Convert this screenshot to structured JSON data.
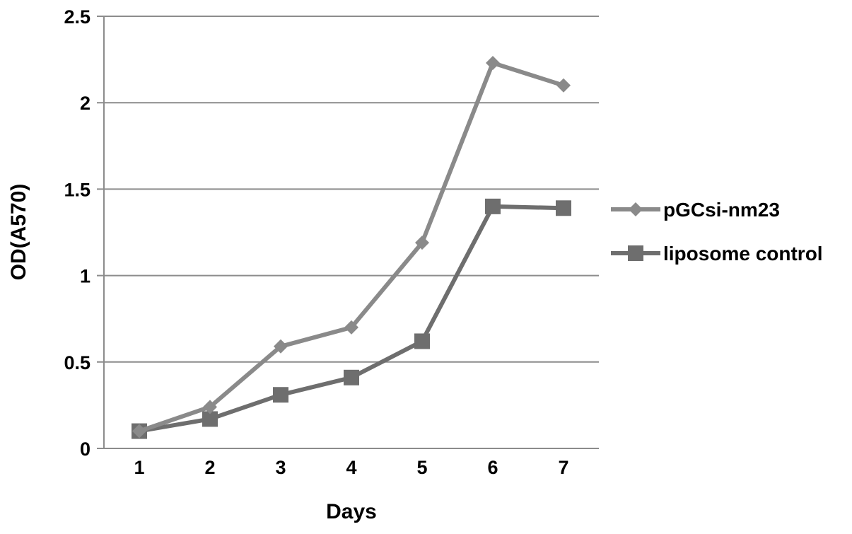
{
  "chart_data": {
    "type": "line",
    "xlabel": "Days",
    "ylabel": "OD(A570)",
    "x": [
      "1",
      "2",
      "3",
      "4",
      "5",
      "6",
      "7"
    ],
    "ylim": [
      0,
      2.5
    ],
    "yticks": [
      "0",
      "0.5",
      "1",
      "1.5",
      "2",
      "2.5"
    ],
    "grid": true,
    "legend_position": "right",
    "series": [
      {
        "name": "pGCsi-nm23",
        "marker": "diamond",
        "color": "#8a8a8a",
        "values": [
          0.1,
          0.24,
          0.59,
          0.7,
          1.19,
          2.23,
          2.1
        ]
      },
      {
        "name": "liposome control",
        "marker": "square",
        "color": "#6e6e6e",
        "values": [
          0.1,
          0.17,
          0.31,
          0.41,
          0.62,
          1.4,
          1.39
        ]
      }
    ]
  }
}
